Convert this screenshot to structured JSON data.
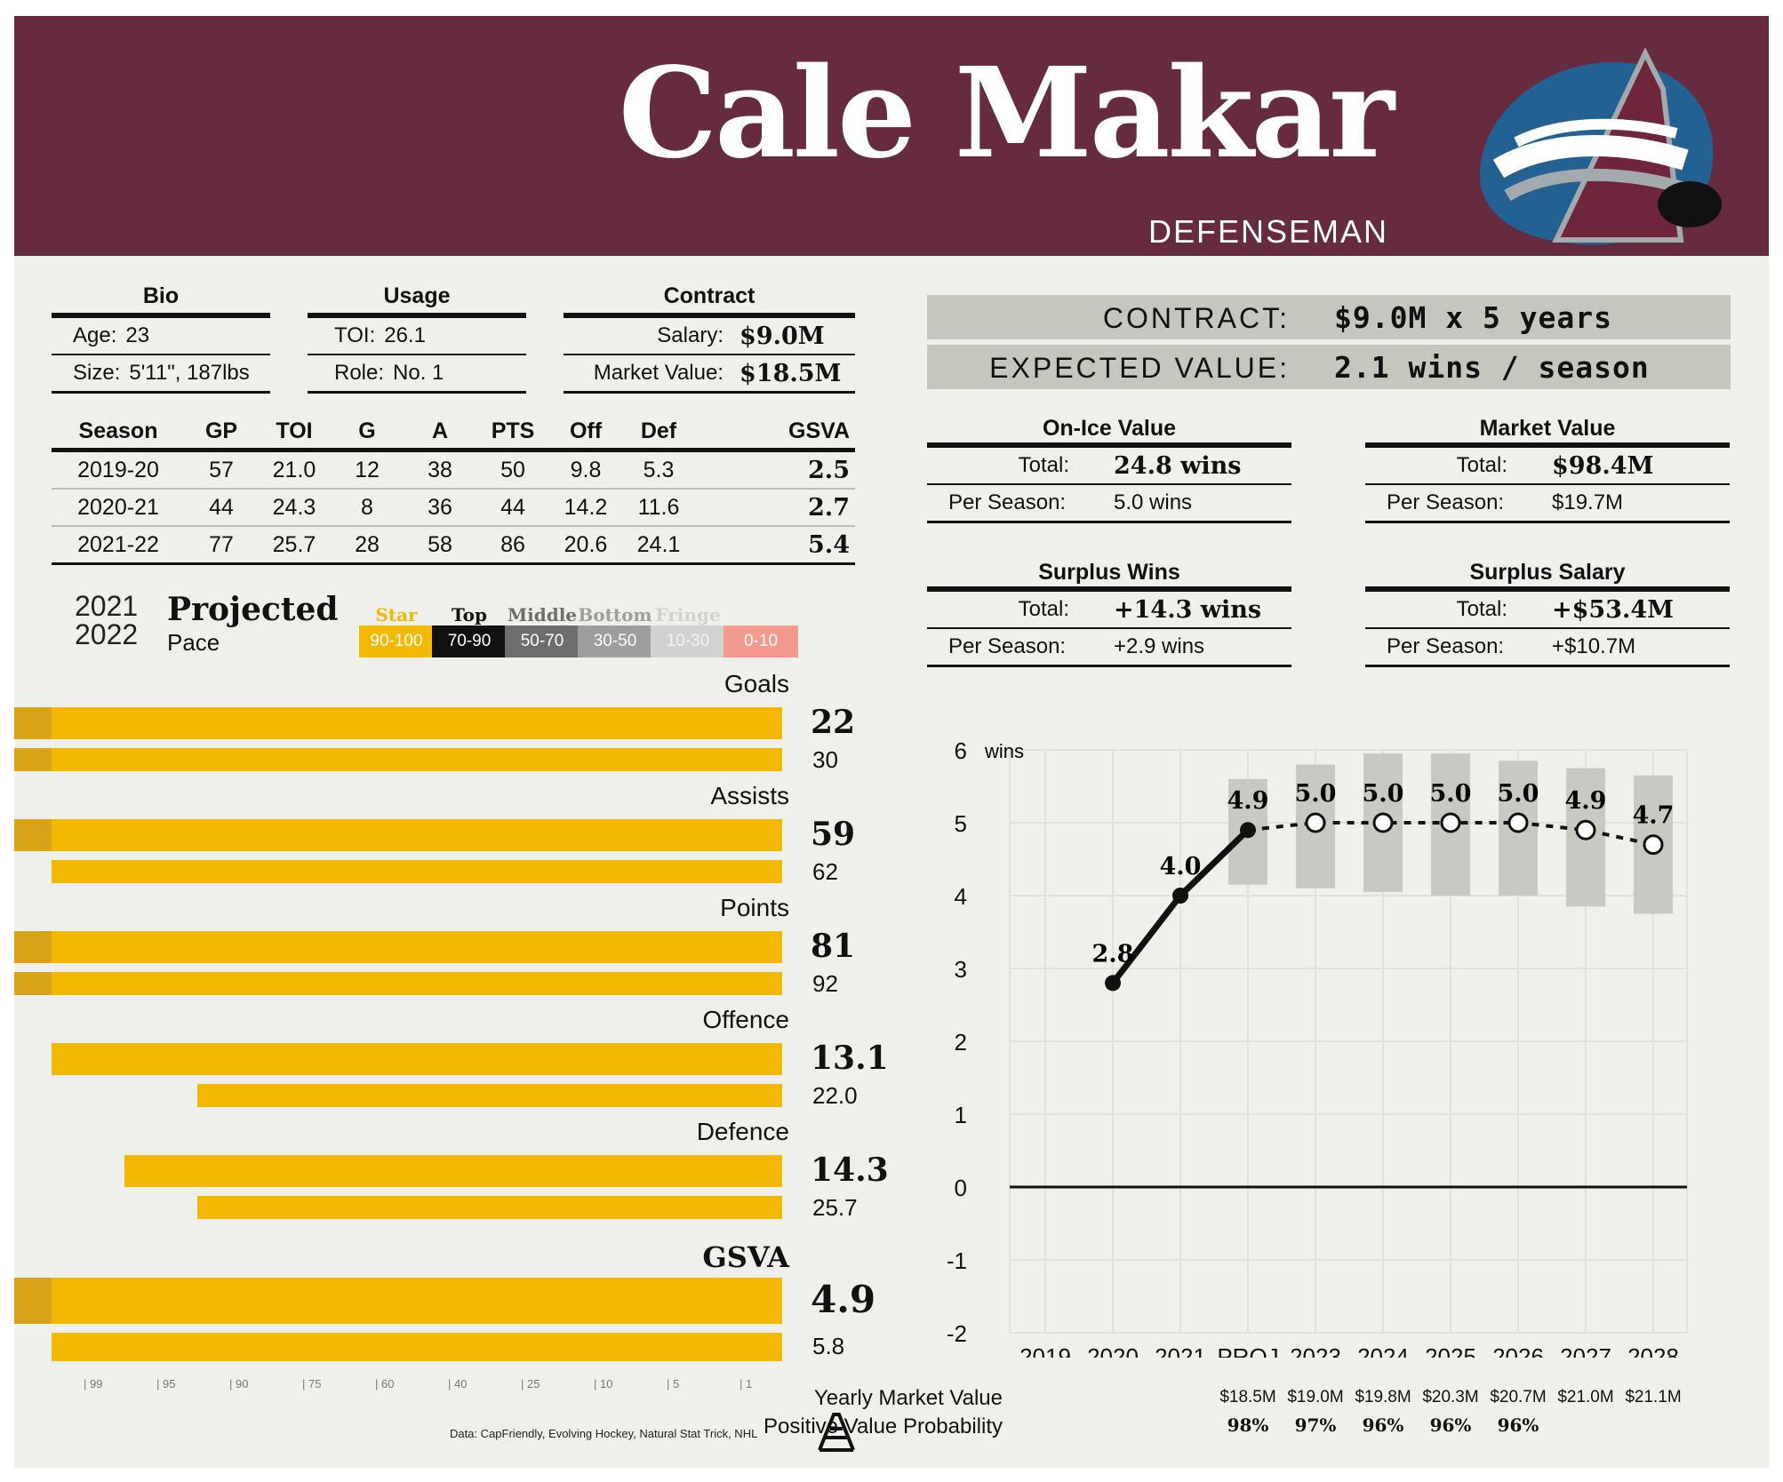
{
  "header": {
    "name": "Cale Makar",
    "position": "DEFENSEMAN",
    "logo": "avalanche-logo"
  },
  "bio": {
    "title": "Bio",
    "rows": [
      {
        "k": "Age:",
        "v": "23"
      },
      {
        "k": "Size:",
        "v": "5'11\", 187lbs"
      }
    ]
  },
  "usage": {
    "title": "Usage",
    "rows": [
      {
        "k": "TOI:",
        "v": "26.1"
      },
      {
        "k": "Role:",
        "v": "No. 1"
      }
    ]
  },
  "contract": {
    "title": "Contract",
    "rows": [
      {
        "k": "Salary:",
        "v": "$9.0M"
      },
      {
        "k": "Market Value:",
        "v": "$18.5M"
      }
    ]
  },
  "stats": {
    "headers": [
      "Season",
      "GP",
      "TOI",
      "G",
      "A",
      "PTS",
      "Off",
      "Def",
      "GSVA"
    ],
    "rows": [
      [
        "2019-20",
        "57",
        "21.0",
        "12",
        "38",
        "50",
        "9.8",
        "5.3",
        "2.5"
      ],
      [
        "2020-21",
        "44",
        "24.3",
        "8",
        "36",
        "44",
        "14.2",
        "11.6",
        "2.7"
      ],
      [
        "2021-22",
        "77",
        "25.7",
        "28",
        "58",
        "86",
        "20.6",
        "24.1",
        "5.4"
      ]
    ]
  },
  "projection": {
    "season_a": "2021",
    "season_b": "2022",
    "title": "Projected",
    "subtitle": "Pace",
    "tiers": [
      {
        "name": "Star",
        "range": "90-100",
        "color": "#f2b900"
      },
      {
        "name": "Top",
        "range": "70-90",
        "color": "#111111"
      },
      {
        "name": "Middle",
        "range": "50-70",
        "color": "#6e6e6e"
      },
      {
        "name": "Bottom",
        "range": "30-50",
        "color": "#9e9e9e"
      },
      {
        "name": "Fringe",
        "range": "10-30",
        "color": "#d2d2d2"
      },
      {
        "name": "",
        "range": "0-10",
        "color": "#f3998e"
      }
    ]
  },
  "bars": {
    "scale_ticks": [
      "99",
      "95",
      "90",
      "75",
      "60",
      "40",
      "25",
      "10",
      "5",
      "1"
    ],
    "metrics": [
      {
        "label": "Goals",
        "main": "22",
        "sub": "30",
        "main_pct": 99.5,
        "sub_pct": 99.5
      },
      {
        "label": "Assists",
        "main": "59",
        "sub": "62",
        "main_pct": 99.5,
        "sub_pct": 99
      },
      {
        "label": "Points",
        "main": "81",
        "sub": "92",
        "main_pct": 99.5,
        "sub_pct": 99.5
      },
      {
        "label": "Offence",
        "main": "13.1",
        "sub": "22.0",
        "main_pct": 99,
        "sub_pct": 91
      },
      {
        "label": "Defence",
        "main": "14.3",
        "sub": "25.7",
        "main_pct": 95,
        "sub_pct": 91
      },
      {
        "label": "GSVA",
        "main": "4.9",
        "sub": "5.8",
        "main_pct": 99.5,
        "sub_pct": 99
      }
    ]
  },
  "source": "Data: CapFriendly, Evolving Hockey, Natural Stat Trick, NHL",
  "brand_logo": "athletic-logo",
  "banners": [
    {
      "label": "CONTRACT:",
      "value": "$9.0M x 5 years"
    },
    {
      "label": "EXPECTED VALUE:",
      "value": "2.1 wins / season"
    }
  ],
  "boxes": [
    {
      "title": "On-Ice Value",
      "total": "24.8 wins",
      "per": "5.0 wins"
    },
    {
      "title": "Market Value",
      "total": "$98.4M",
      "per": "$19.7M"
    },
    {
      "title": "Surplus Wins",
      "total": "+14.3 wins",
      "per": "+2.9 wins"
    },
    {
      "title": "Surplus Salary",
      "total": "+$53.4M",
      "per": "+$10.7M"
    }
  ],
  "box_labels": {
    "total": "Total:",
    "per": "Per Season:"
  },
  "chart_data": {
    "type": "line",
    "unit_label": "wins",
    "x": [
      "2019",
      "2020",
      "2021",
      "PROJ",
      "2023",
      "2024",
      "2025",
      "2026",
      "2027",
      "2028"
    ],
    "ylim": [
      -2,
      6
    ],
    "yticks": [
      "6",
      "5",
      "4",
      "3",
      "2",
      "1",
      "0",
      "-1",
      "-2"
    ],
    "grid": true,
    "actual": [
      null,
      2.8,
      4.0,
      4.9,
      null,
      null,
      null,
      null,
      null,
      null
    ],
    "projected": [
      null,
      null,
      null,
      4.9,
      5.0,
      5.0,
      5.0,
      5.0,
      4.9,
      4.7
    ],
    "labels": [
      "",
      "2.8",
      "4.0",
      "4.9",
      "5.0",
      "5.0",
      "5.0",
      "5.0",
      "4.9",
      "4.7"
    ],
    "range_low": [
      null,
      null,
      null,
      4.15,
      4.1,
      4.05,
      4.0,
      4.0,
      3.85,
      3.75
    ],
    "range_high": [
      null,
      null,
      null,
      5.6,
      5.8,
      5.95,
      5.95,
      5.85,
      5.75,
      5.65
    ],
    "market_value_label": "Yearly Market Value",
    "market_values": [
      "$18.5M",
      "$19.0M",
      "$19.8M",
      "$20.3M",
      "$20.7M",
      "$21.0M",
      "$21.1M"
    ],
    "positive_prob_label": "Positive Value Probability",
    "positive_probs": [
      "98%",
      "97%",
      "96%",
      "96%",
      "96%"
    ]
  }
}
